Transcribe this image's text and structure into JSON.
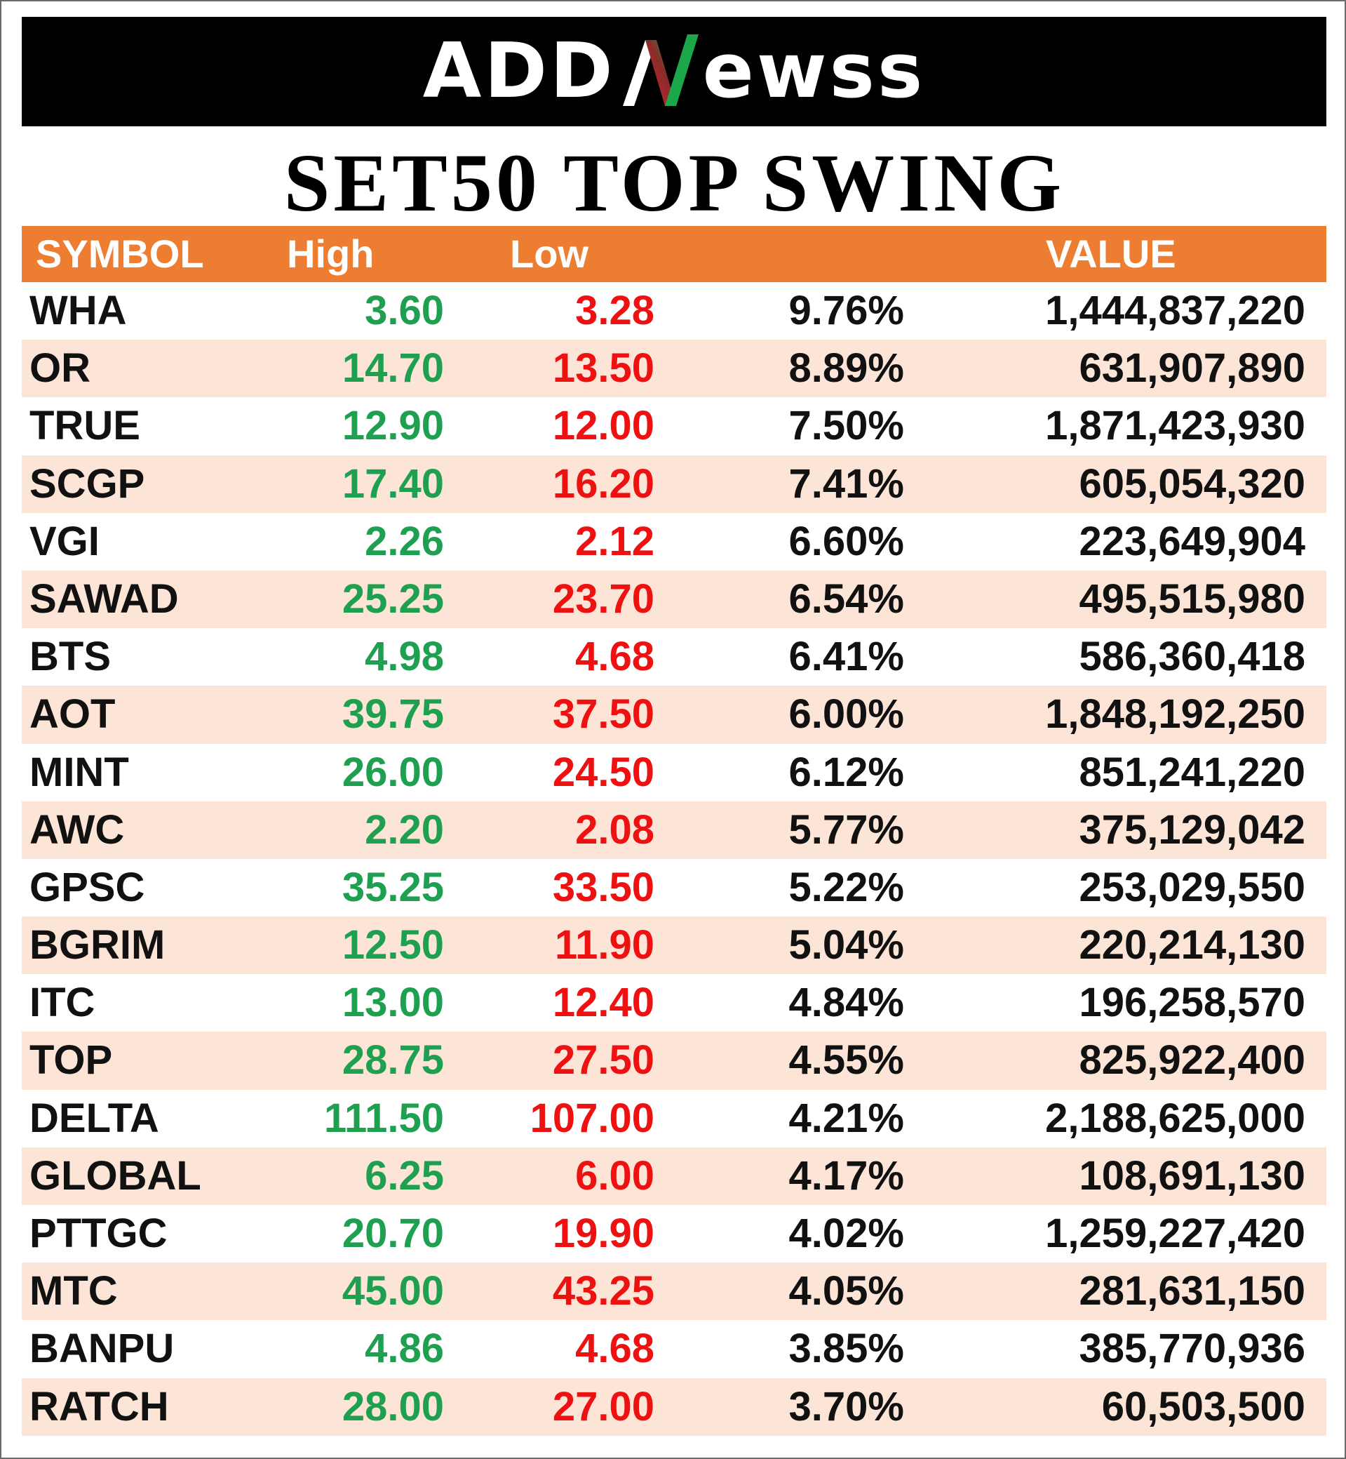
{
  "brand": {
    "logo_left": "ADD",
    "logo_right": "ewss",
    "logo_colors": {
      "green": "#1aa84a",
      "red": "#d8262c"
    }
  },
  "title": "SET50 TOP SWING",
  "table": {
    "headers": {
      "symbol": "SYMBOL",
      "high": "High",
      "low": "Low",
      "pct": "",
      "value": "VALUE"
    },
    "header_color": "#ed7d31",
    "alt_row_color": "#fce4d6",
    "rows": [
      {
        "symbol": "WHA",
        "high": "3.60",
        "low": "3.28",
        "pct": "9.76%",
        "value": "1,444,837,220"
      },
      {
        "symbol": "OR",
        "high": "14.70",
        "low": "13.50",
        "pct": "8.89%",
        "value": "631,907,890"
      },
      {
        "symbol": "TRUE",
        "high": "12.90",
        "low": "12.00",
        "pct": "7.50%",
        "value": "1,871,423,930"
      },
      {
        "symbol": "SCGP",
        "high": "17.40",
        "low": "16.20",
        "pct": "7.41%",
        "value": "605,054,320"
      },
      {
        "symbol": "VGI",
        "high": "2.26",
        "low": "2.12",
        "pct": "6.60%",
        "value": "223,649,904"
      },
      {
        "symbol": "SAWAD",
        "high": "25.25",
        "low": "23.70",
        "pct": "6.54%",
        "value": "495,515,980"
      },
      {
        "symbol": "BTS",
        "high": "4.98",
        "low": "4.68",
        "pct": "6.41%",
        "value": "586,360,418"
      },
      {
        "symbol": "AOT",
        "high": "39.75",
        "low": "37.50",
        "pct": "6.00%",
        "value": "1,848,192,250"
      },
      {
        "symbol": "MINT",
        "high": "26.00",
        "low": "24.50",
        "pct": "6.12%",
        "value": "851,241,220"
      },
      {
        "symbol": "AWC",
        "high": "2.20",
        "low": "2.08",
        "pct": "5.77%",
        "value": "375,129,042"
      },
      {
        "symbol": "GPSC",
        "high": "35.25",
        "low": "33.50",
        "pct": "5.22%",
        "value": "253,029,550"
      },
      {
        "symbol": "BGRIM",
        "high": "12.50",
        "low": "11.90",
        "pct": "5.04%",
        "value": "220,214,130"
      },
      {
        "symbol": "ITC",
        "high": "13.00",
        "low": "12.40",
        "pct": "4.84%",
        "value": "196,258,570"
      },
      {
        "symbol": "TOP",
        "high": "28.75",
        "low": "27.50",
        "pct": "4.55%",
        "value": "825,922,400"
      },
      {
        "symbol": "DELTA",
        "high": "111.50",
        "low": "107.00",
        "pct": "4.21%",
        "value": "2,188,625,000"
      },
      {
        "symbol": "GLOBAL",
        "high": "6.25",
        "low": "6.00",
        "pct": "4.17%",
        "value": "108,691,130"
      },
      {
        "symbol": "PTTGC",
        "high": "20.70",
        "low": "19.90",
        "pct": "4.02%",
        "value": "1,259,227,420"
      },
      {
        "symbol": "MTC",
        "high": "45.00",
        "low": "43.25",
        "pct": "4.05%",
        "value": "281,631,150"
      },
      {
        "symbol": "BANPU",
        "high": "4.86",
        "low": "4.68",
        "pct": "3.85%",
        "value": "385,770,936"
      },
      {
        "symbol": "RATCH",
        "high": "28.00",
        "low": "27.00",
        "pct": "3.70%",
        "value": "60,503,500"
      }
    ]
  }
}
